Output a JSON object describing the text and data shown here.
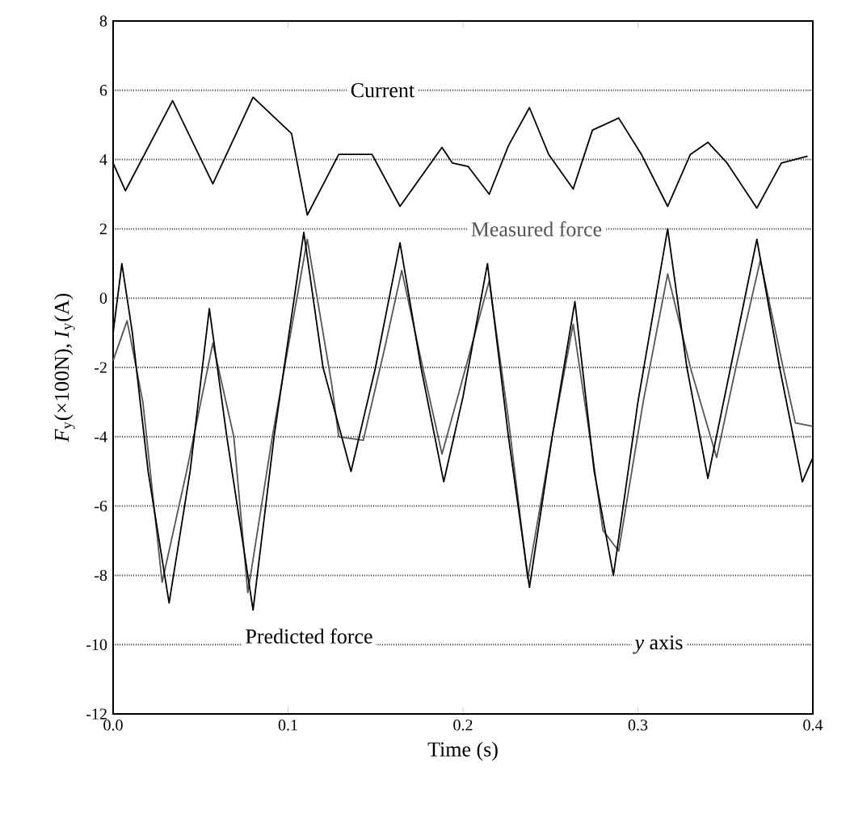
{
  "chart_data": {
    "type": "line",
    "xlabel": "Time (s)",
    "ylabel": "*F*$_{y}$(×100N), *I*$_{y}$(A)",
    "xlim": [
      0,
      0.4
    ],
    "ylim": [
      -12,
      8
    ],
    "xticks": [
      {
        "value": 0,
        "label": "0.0"
      },
      {
        "value": 0.1,
        "label": "0.1"
      },
      {
        "value": 0.2,
        "label": "0.2"
      },
      {
        "value": 0.3,
        "label": "0.3"
      },
      {
        "value": 0.4,
        "label": "0.4"
      }
    ],
    "yticks": [
      -12,
      -10,
      -8,
      -6,
      -4,
      -2,
      0,
      2,
      4,
      6,
      8
    ],
    "grid": "y",
    "legend": false,
    "marker": "none",
    "line_style": "solid",
    "annotations": [
      "*y* axis"
    ],
    "series": [
      {
        "name": "Current",
        "color": "#000000",
        "x": [
          0,
          0.007,
          0.034,
          0.057,
          0.08,
          0.102,
          0.111,
          0.129,
          0.148,
          0.164,
          0.188,
          0.194,
          0.203,
          0.215,
          0.226,
          0.238,
          0.249,
          0.263,
          0.274,
          0.289,
          0.302,
          0.317,
          0.33,
          0.34,
          0.351,
          0.368,
          0.382,
          0.397
        ],
        "values": [
          3.9,
          3.1,
          5.7,
          3.3,
          5.8,
          4.75,
          2.4,
          4.15,
          4.15,
          2.65,
          4.35,
          3.9,
          3.8,
          3.0,
          4.4,
          5.5,
          4.15,
          3.15,
          4.85,
          5.2,
          4.15,
          2.65,
          4.15,
          4.5,
          3.9,
          2.6,
          3.9,
          4.1
        ]
      },
      {
        "name": "Measured force",
        "color": "#555555",
        "x": [
          0,
          0.008,
          0.017,
          0.028,
          0.042,
          0.057,
          0.069,
          0.077,
          0.091,
          0.111,
          0.125,
          0.129,
          0.143,
          0.155,
          0.165,
          0.177,
          0.188,
          0.197,
          0.215,
          0.226,
          0.237,
          0.251,
          0.263,
          0.274,
          0.28,
          0.289,
          0.303,
          0.317,
          0.33,
          0.345,
          0.356,
          0.37,
          0.383,
          0.39,
          0.4
        ],
        "values": [
          -1.8,
          -0.65,
          -3,
          -8.2,
          -5,
          -1.3,
          -4,
          -8.5,
          -4,
          1.7,
          -2.5,
          -4.0,
          -4.1,
          -1.5,
          0.8,
          -2,
          -4.5,
          -2.85,
          0.5,
          -3.5,
          -8.1,
          -4,
          -0.75,
          -4.5,
          -6.7,
          -7.3,
          -3,
          0.7,
          -2,
          -4.6,
          -2,
          1.1,
          -2,
          -3.6,
          -3.7
        ]
      },
      {
        "name": "Predicted force",
        "color": "#000000",
        "x": [
          0,
          0.005,
          0.011,
          0.02,
          0.032,
          0.044,
          0.055,
          0.065,
          0.08,
          0.092,
          0.109,
          0.12,
          0.136,
          0.15,
          0.164,
          0.176,
          0.189,
          0.2,
          0.214,
          0.226,
          0.238,
          0.251,
          0.264,
          0.275,
          0.286,
          0.3,
          0.317,
          0.328,
          0.34,
          0.353,
          0.368,
          0.381,
          0.394,
          0.4
        ],
        "values": [
          -1.0,
          1.0,
          -1,
          -5,
          -8.8,
          -5,
          -0.3,
          -4,
          -9.0,
          -4,
          1.9,
          -2,
          -5.0,
          -2,
          1.6,
          -2,
          -5.3,
          -2.85,
          1.0,
          -4,
          -8.35,
          -4,
          -0.1,
          -5,
          -8.0,
          -3,
          2.0,
          -2,
          -5.2,
          -2,
          1.7,
          -2,
          -5.3,
          -4.6
        ]
      }
    ]
  }
}
